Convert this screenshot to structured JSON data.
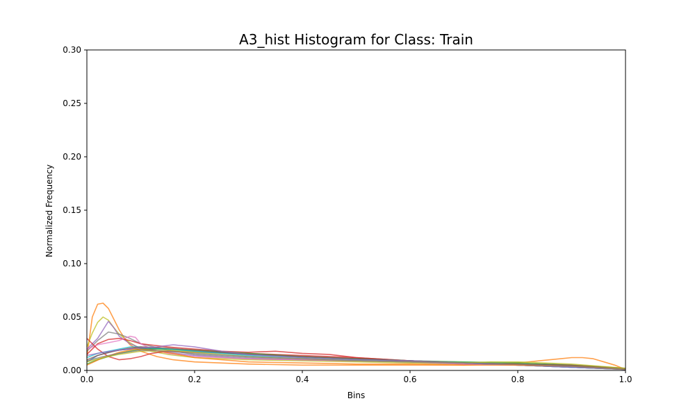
{
  "chart_data": {
    "type": "line",
    "title": "A3_hist Histogram for Class: Train",
    "xlabel": "Bins",
    "ylabel": "Normalized Frequency",
    "xlim": [
      0.0,
      1.0
    ],
    "ylim": [
      0.0,
      0.3
    ],
    "xticks": [
      0.0,
      0.2,
      0.4,
      0.6,
      0.8,
      1.0
    ],
    "xtick_labels": [
      "0.0",
      "0.2",
      "0.4",
      "0.6",
      "0.8",
      "1.0"
    ],
    "yticks": [
      0.0,
      0.05,
      0.1,
      0.15,
      0.2,
      0.25,
      0.3
    ],
    "ytick_labels": [
      "0.00",
      "0.05",
      "0.10",
      "0.15",
      "0.20",
      "0.25",
      "0.30"
    ],
    "grid": false,
    "legend": "none",
    "line_alpha": 0.75,
    "series": [
      {
        "color": "#ff7f0e",
        "points": [
          [
            0.0,
            0.012
          ],
          [
            0.01,
            0.05
          ],
          [
            0.02,
            0.062
          ],
          [
            0.03,
            0.063
          ],
          [
            0.04,
            0.058
          ],
          [
            0.05,
            0.048
          ],
          [
            0.06,
            0.038
          ],
          [
            0.07,
            0.03
          ],
          [
            0.08,
            0.024
          ],
          [
            0.1,
            0.018
          ],
          [
            0.13,
            0.013
          ],
          [
            0.16,
            0.01
          ],
          [
            0.2,
            0.008
          ],
          [
            0.3,
            0.006
          ],
          [
            0.4,
            0.005
          ],
          [
            0.5,
            0.005
          ],
          [
            0.6,
            0.005
          ],
          [
            0.7,
            0.005
          ],
          [
            0.75,
            0.006
          ],
          [
            0.8,
            0.007
          ],
          [
            0.84,
            0.009
          ],
          [
            0.88,
            0.011
          ],
          [
            0.9,
            0.012
          ],
          [
            0.92,
            0.012
          ],
          [
            0.94,
            0.011
          ],
          [
            0.96,
            0.008
          ],
          [
            0.98,
            0.005
          ],
          [
            1.0,
            0.001
          ]
        ]
      },
      {
        "color": "#bcbd22",
        "points": [
          [
            0.0,
            0.022
          ],
          [
            0.01,
            0.035
          ],
          [
            0.02,
            0.045
          ],
          [
            0.03,
            0.05
          ],
          [
            0.04,
            0.047
          ],
          [
            0.05,
            0.04
          ],
          [
            0.06,
            0.034
          ],
          [
            0.08,
            0.026
          ],
          [
            0.1,
            0.02
          ],
          [
            0.15,
            0.015
          ],
          [
            0.2,
            0.012
          ],
          [
            0.3,
            0.01
          ],
          [
            0.4,
            0.009
          ],
          [
            0.5,
            0.008
          ],
          [
            0.6,
            0.007
          ],
          [
            0.7,
            0.006
          ],
          [
            0.8,
            0.006
          ],
          [
            0.9,
            0.004
          ],
          [
            1.0,
            0.001
          ]
        ]
      },
      {
        "color": "#9467bd",
        "points": [
          [
            0.0,
            0.02
          ],
          [
            0.02,
            0.03
          ],
          [
            0.03,
            0.038
          ],
          [
            0.04,
            0.046
          ],
          [
            0.05,
            0.04
          ],
          [
            0.06,
            0.032
          ],
          [
            0.08,
            0.025
          ],
          [
            0.1,
            0.021
          ],
          [
            0.15,
            0.017
          ],
          [
            0.2,
            0.014
          ],
          [
            0.3,
            0.011
          ],
          [
            0.4,
            0.01
          ],
          [
            0.5,
            0.009
          ],
          [
            0.6,
            0.008
          ],
          [
            0.7,
            0.006
          ],
          [
            0.8,
            0.005
          ],
          [
            0.9,
            0.004
          ],
          [
            1.0,
            0.001
          ]
        ]
      },
      {
        "color": "#7f7f7f",
        "points": [
          [
            0.0,
            0.018
          ],
          [
            0.02,
            0.028
          ],
          [
            0.04,
            0.036
          ],
          [
            0.06,
            0.034
          ],
          [
            0.08,
            0.03
          ],
          [
            0.1,
            0.025
          ],
          [
            0.15,
            0.019
          ],
          [
            0.2,
            0.015
          ],
          [
            0.3,
            0.012
          ],
          [
            0.4,
            0.01
          ],
          [
            0.5,
            0.009
          ],
          [
            0.6,
            0.008
          ],
          [
            0.7,
            0.007
          ],
          [
            0.8,
            0.006
          ],
          [
            0.85,
            0.006
          ],
          [
            0.9,
            0.005
          ],
          [
            1.0,
            0.002
          ]
        ]
      },
      {
        "color": "#d62728",
        "points": [
          [
            0.0,
            0.015
          ],
          [
            0.02,
            0.025
          ],
          [
            0.04,
            0.029
          ],
          [
            0.06,
            0.03
          ],
          [
            0.08,
            0.028
          ],
          [
            0.1,
            0.025
          ],
          [
            0.15,
            0.022
          ],
          [
            0.2,
            0.02
          ],
          [
            0.25,
            0.018
          ],
          [
            0.3,
            0.017
          ],
          [
            0.35,
            0.018
          ],
          [
            0.4,
            0.016
          ],
          [
            0.45,
            0.015
          ],
          [
            0.5,
            0.012
          ],
          [
            0.6,
            0.009
          ],
          [
            0.7,
            0.007
          ],
          [
            0.8,
            0.005
          ],
          [
            0.9,
            0.003
          ],
          [
            1.0,
            0.001
          ]
        ]
      },
      {
        "color": "#e377c2",
        "points": [
          [
            0.0,
            0.02
          ],
          [
            0.02,
            0.024
          ],
          [
            0.04,
            0.026
          ],
          [
            0.06,
            0.028
          ],
          [
            0.08,
            0.032
          ],
          [
            0.09,
            0.031
          ],
          [
            0.1,
            0.025
          ],
          [
            0.12,
            0.02
          ],
          [
            0.15,
            0.016
          ],
          [
            0.2,
            0.013
          ],
          [
            0.3,
            0.011
          ],
          [
            0.4,
            0.01
          ],
          [
            0.5,
            0.009
          ],
          [
            0.6,
            0.008
          ],
          [
            0.7,
            0.006
          ],
          [
            0.8,
            0.005
          ],
          [
            0.9,
            0.003
          ],
          [
            1.0,
            0.001
          ]
        ]
      },
      {
        "color": "#d62728",
        "points": [
          [
            0.0,
            0.03
          ],
          [
            0.02,
            0.02
          ],
          [
            0.04,
            0.013
          ],
          [
            0.06,
            0.01
          ],
          [
            0.08,
            0.011
          ],
          [
            0.1,
            0.013
          ],
          [
            0.12,
            0.016
          ],
          [
            0.15,
            0.018
          ],
          [
            0.2,
            0.017
          ],
          [
            0.3,
            0.016
          ],
          [
            0.4,
            0.014
          ],
          [
            0.5,
            0.012
          ],
          [
            0.6,
            0.009
          ],
          [
            0.7,
            0.007
          ],
          [
            0.8,
            0.006
          ],
          [
            0.9,
            0.004
          ],
          [
            1.0,
            0.001
          ]
        ]
      },
      {
        "color": "#1f77b4",
        "points": [
          [
            0.0,
            0.008
          ],
          [
            0.02,
            0.014
          ],
          [
            0.04,
            0.017
          ],
          [
            0.06,
            0.019
          ],
          [
            0.08,
            0.02
          ],
          [
            0.1,
            0.021
          ],
          [
            0.15,
            0.02
          ],
          [
            0.2,
            0.018
          ],
          [
            0.3,
            0.015
          ],
          [
            0.4,
            0.013
          ],
          [
            0.5,
            0.011
          ],
          [
            0.6,
            0.009
          ],
          [
            0.7,
            0.007
          ],
          [
            0.8,
            0.005
          ],
          [
            0.9,
            0.003
          ],
          [
            1.0,
            0.001
          ]
        ]
      },
      {
        "color": "#2ca02c",
        "points": [
          [
            0.0,
            0.006
          ],
          [
            0.02,
            0.01
          ],
          [
            0.04,
            0.013
          ],
          [
            0.06,
            0.016
          ],
          [
            0.08,
            0.018
          ],
          [
            0.1,
            0.02
          ],
          [
            0.15,
            0.02
          ],
          [
            0.2,
            0.019
          ],
          [
            0.3,
            0.016
          ],
          [
            0.4,
            0.013
          ],
          [
            0.5,
            0.011
          ],
          [
            0.6,
            0.009
          ],
          [
            0.7,
            0.008
          ],
          [
            0.8,
            0.007
          ],
          [
            0.9,
            0.005
          ],
          [
            1.0,
            0.002
          ]
        ]
      },
      {
        "color": "#17becf",
        "points": [
          [
            0.0,
            0.012
          ],
          [
            0.02,
            0.016
          ],
          [
            0.04,
            0.018
          ],
          [
            0.06,
            0.02
          ],
          [
            0.08,
            0.022
          ],
          [
            0.1,
            0.022
          ],
          [
            0.15,
            0.02
          ],
          [
            0.2,
            0.018
          ],
          [
            0.3,
            0.014
          ],
          [
            0.4,
            0.012
          ],
          [
            0.5,
            0.01
          ],
          [
            0.6,
            0.009
          ],
          [
            0.7,
            0.007
          ],
          [
            0.8,
            0.005
          ],
          [
            0.9,
            0.003
          ],
          [
            1.0,
            0.001
          ]
        ]
      },
      {
        "color": "#8c564b",
        "points": [
          [
            0.0,
            0.01
          ],
          [
            0.02,
            0.014
          ],
          [
            0.05,
            0.018
          ],
          [
            0.08,
            0.021
          ],
          [
            0.1,
            0.022
          ],
          [
            0.15,
            0.021
          ],
          [
            0.2,
            0.019
          ],
          [
            0.3,
            0.015
          ],
          [
            0.4,
            0.013
          ],
          [
            0.5,
            0.011
          ],
          [
            0.6,
            0.009
          ],
          [
            0.7,
            0.007
          ],
          [
            0.8,
            0.006
          ],
          [
            0.9,
            0.005
          ],
          [
            1.0,
            0.002
          ]
        ]
      },
      {
        "color": "#9467bd",
        "points": [
          [
            0.0,
            0.014
          ],
          [
            0.03,
            0.017
          ],
          [
            0.06,
            0.019
          ],
          [
            0.1,
            0.021
          ],
          [
            0.13,
            0.022
          ],
          [
            0.16,
            0.024
          ],
          [
            0.2,
            0.022
          ],
          [
            0.25,
            0.018
          ],
          [
            0.3,
            0.015
          ],
          [
            0.4,
            0.012
          ],
          [
            0.5,
            0.01
          ],
          [
            0.6,
            0.009
          ],
          [
            0.7,
            0.007
          ],
          [
            0.8,
            0.005
          ],
          [
            0.9,
            0.003
          ],
          [
            1.0,
            0.001
          ]
        ]
      },
      {
        "color": "#ff7f0e",
        "points": [
          [
            0.0,
            0.005
          ],
          [
            0.03,
            0.012
          ],
          [
            0.06,
            0.017
          ],
          [
            0.09,
            0.02
          ],
          [
            0.12,
            0.019
          ],
          [
            0.16,
            0.016
          ],
          [
            0.2,
            0.012
          ],
          [
            0.3,
            0.008
          ],
          [
            0.4,
            0.007
          ],
          [
            0.5,
            0.006
          ],
          [
            0.6,
            0.006
          ],
          [
            0.7,
            0.005
          ],
          [
            0.8,
            0.005
          ],
          [
            0.9,
            0.004
          ],
          [
            1.0,
            0.001
          ]
        ]
      },
      {
        "color": "#bcbd22",
        "points": [
          [
            0.0,
            0.008
          ],
          [
            0.03,
            0.012
          ],
          [
            0.06,
            0.015
          ],
          [
            0.1,
            0.018
          ],
          [
            0.15,
            0.019
          ],
          [
            0.2,
            0.017
          ],
          [
            0.3,
            0.013
          ],
          [
            0.4,
            0.011
          ],
          [
            0.5,
            0.009
          ],
          [
            0.6,
            0.008
          ],
          [
            0.7,
            0.007
          ],
          [
            0.75,
            0.008
          ],
          [
            0.8,
            0.008
          ],
          [
            0.85,
            0.007
          ],
          [
            0.9,
            0.006
          ],
          [
            0.95,
            0.004
          ],
          [
            1.0,
            0.002
          ]
        ]
      },
      {
        "color": "#7f7f7f",
        "points": [
          [
            0.0,
            0.009
          ],
          [
            0.03,
            0.013
          ],
          [
            0.06,
            0.016
          ],
          [
            0.1,
            0.019
          ],
          [
            0.15,
            0.018
          ],
          [
            0.2,
            0.016
          ],
          [
            0.3,
            0.013
          ],
          [
            0.4,
            0.011
          ],
          [
            0.5,
            0.009
          ],
          [
            0.6,
            0.008
          ],
          [
            0.7,
            0.007
          ],
          [
            0.8,
            0.006
          ],
          [
            0.9,
            0.004
          ],
          [
            1.0,
            0.001
          ]
        ]
      }
    ]
  }
}
